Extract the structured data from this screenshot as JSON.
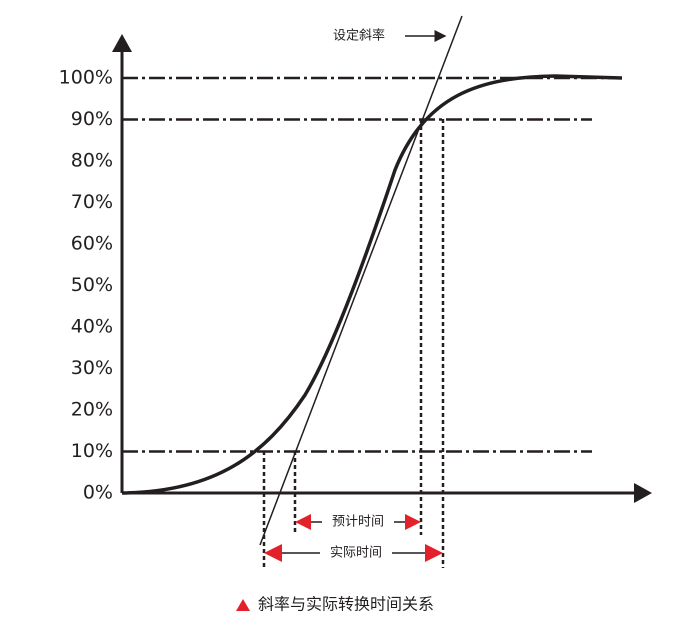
{
  "yaxis": {
    "ticks": [
      {
        "value": 0,
        "label": "0%"
      },
      {
        "value": 10,
        "label": "10%"
      },
      {
        "value": 20,
        "label": "20%"
      },
      {
        "value": 30,
        "label": "30%"
      },
      {
        "value": 40,
        "label": "40%"
      },
      {
        "value": 50,
        "label": "50%"
      },
      {
        "value": 60,
        "label": "60%"
      },
      {
        "value": 70,
        "label": "70%"
      },
      {
        "value": 80,
        "label": "80%"
      },
      {
        "value": 90,
        "label": "90%"
      },
      {
        "value": 100,
        "label": "100%"
      }
    ]
  },
  "reference_lines": [
    10,
    90,
    100
  ],
  "annotations": {
    "slope": "设定斜率",
    "expected_time": "预计时间",
    "actual_time": "实际时间"
  },
  "caption": "斜率与实际转换时间关系"
}
